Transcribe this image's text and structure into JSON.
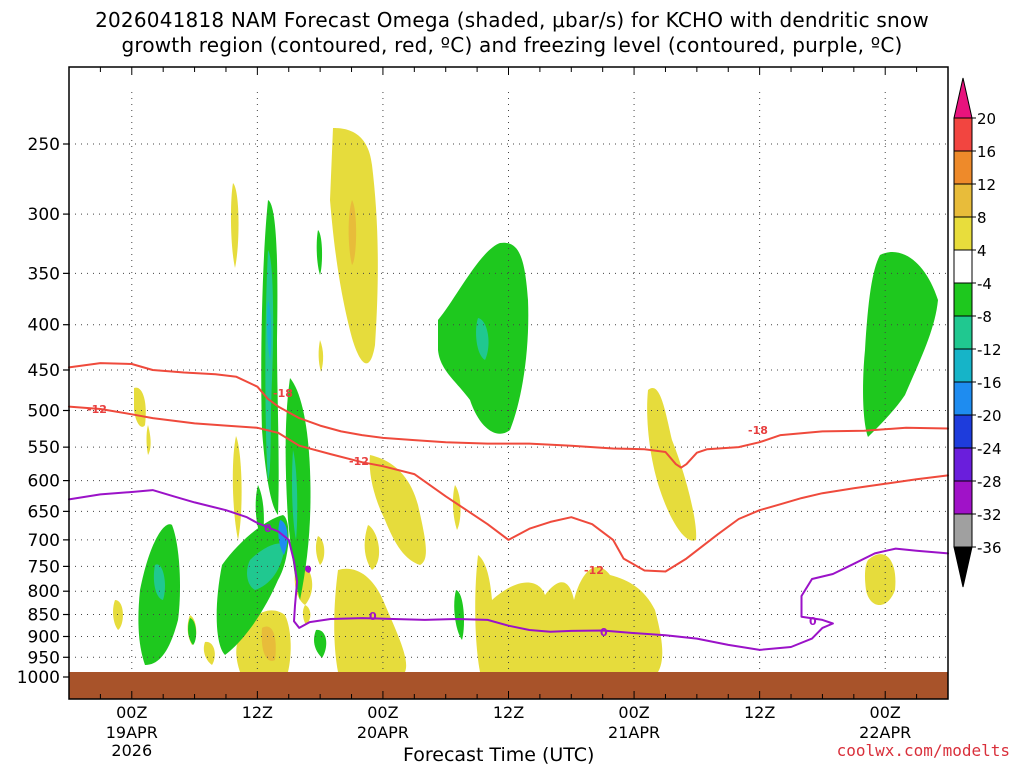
{
  "title": {
    "line1": "2026041818 NAM Forecast Omega (shaded, μbar/s) for KCHO with dendritic snow",
    "line2": "growth region (contoured, red, ºC) and freezing level (contoured, purple, ºC)"
  },
  "credit": "coolwx.com/modelts",
  "chart_data": {
    "type": "time-height cross-section",
    "title": "2026041818 NAM Forecast Omega (shaded, μbar/s) for KCHO with dendritic snow growth region (contoured, red, ºC) and freezing level (contoured, purple, ºC)",
    "xlabel": "Forecast Time (UTC)",
    "ylabel": "",
    "y_axis": {
      "ticks": [
        250,
        300,
        350,
        400,
        450,
        500,
        550,
        600,
        650,
        700,
        750,
        800,
        850,
        900,
        950,
        1000
      ],
      "scale": "log pressure (hPa), inverted"
    },
    "x_axis": {
      "ticks": [
        {
          "label": "00Z",
          "sub1": "19APR",
          "sub2": "2026",
          "hour": 6
        },
        {
          "label": "12Z",
          "sub1": "",
          "sub2": "",
          "hour": 18
        },
        {
          "label": "00Z",
          "sub1": "20APR",
          "sub2": "",
          "hour": 30
        },
        {
          "label": "12Z",
          "sub1": "",
          "sub2": "",
          "hour": 42
        },
        {
          "label": "00Z",
          "sub1": "21APR",
          "sub2": "",
          "hour": 54
        },
        {
          "label": "12Z",
          "sub1": "",
          "sub2": "",
          "hour": 66
        },
        {
          "label": "00Z",
          "sub1": "22APR",
          "sub2": "",
          "hour": 78
        }
      ],
      "range_hours": [
        0,
        84
      ]
    },
    "colorbar": {
      "labels": [
        "20",
        "16",
        "12",
        "8",
        "4",
        "-4",
        "-8",
        "-12",
        "-16",
        "-20",
        "-24",
        "-28",
        "-32",
        "-36"
      ],
      "colors": [
        "#e8137d",
        "#f24540",
        "#ee8a2a",
        "#e8bc3a",
        "#e8dd3c",
        "#ffffff",
        "#1ec81e",
        "#20c890",
        "#16b4c8",
        "#1e8cf0",
        "#1e3cdc",
        "#6a1edc",
        "#a012c8",
        "#a0a0a0",
        "#000000"
      ]
    },
    "contours": {
      "dendritic_red": [
        {
          "label": "-12",
          "points": [
            [
              0,
              495
            ],
            [
              3,
              498
            ],
            [
              6,
              505
            ],
            [
              8,
              510
            ],
            [
              12,
              517
            ],
            [
              15,
              520
            ],
            [
              18,
              523
            ],
            [
              20,
              530
            ],
            [
              22,
              548
            ],
            [
              25,
              560
            ],
            [
              28,
              572
            ],
            [
              30,
              578
            ],
            [
              33,
              590
            ],
            [
              36,
              625
            ],
            [
              40,
              672
            ],
            [
              42,
              700
            ],
            [
              44,
              680
            ],
            [
              46,
              668
            ],
            [
              48,
              660
            ],
            [
              50,
              672
            ],
            [
              52,
              700
            ],
            [
              53,
              735
            ],
            [
              55,
              758
            ],
            [
              57,
              760
            ],
            [
              59,
              735
            ],
            [
              62,
              690
            ],
            [
              64,
              663
            ],
            [
              66,
              648
            ],
            [
              68,
              638
            ],
            [
              70,
              628
            ],
            [
              72,
              620
            ],
            [
              75,
              612
            ],
            [
              78,
              605
            ],
            [
              81,
              598
            ],
            [
              84,
              592
            ]
          ]
        },
        {
          "label": "-18",
          "points": [
            [
              0,
              447
            ],
            [
              3,
              442
            ],
            [
              6,
              443
            ],
            [
              8,
              450
            ],
            [
              11,
              453
            ],
            [
              14,
              455
            ],
            [
              16,
              458
            ],
            [
              18,
              470
            ],
            [
              19,
              485
            ],
            [
              20,
              495
            ],
            [
              22,
              510
            ],
            [
              24,
              520
            ],
            [
              26,
              528
            ],
            [
              28,
              533
            ],
            [
              30,
              537
            ],
            [
              33,
              540
            ],
            [
              36,
              543
            ],
            [
              40,
              545
            ],
            [
              44,
              545
            ],
            [
              48,
              548
            ],
            [
              52,
              552
            ],
            [
              55,
              553
            ],
            [
              57,
              557
            ],
            [
              58,
              575
            ],
            [
              58.5,
              580
            ],
            [
              59,
              575
            ],
            [
              60,
              558
            ],
            [
              61,
              553
            ],
            [
              64,
              550
            ],
            [
              66,
              543
            ],
            [
              68,
              533
            ],
            [
              72,
              528
            ],
            [
              76,
              527
            ],
            [
              80,
              523
            ],
            [
              84,
              524
            ]
          ]
        }
      ],
      "freezing_purple": [
        {
          "label": "0",
          "points": [
            [
              0,
              630
            ],
            [
              3,
              622
            ],
            [
              6,
              618
            ],
            [
              8,
              615
            ],
            [
              10,
              625
            ],
            [
              12,
              635
            ],
            [
              15,
              648
            ],
            [
              17,
              660
            ],
            [
              18,
              670
            ],
            [
              20,
              685
            ],
            [
              21,
              700
            ],
            [
              21.5,
              740
            ],
            [
              21.8,
              780
            ],
            [
              21.6,
              830
            ],
            [
              21.5,
              865
            ],
            [
              22,
              880
            ],
            [
              23,
              867
            ],
            [
              25,
              860
            ],
            [
              28,
              858
            ],
            [
              31,
              860
            ],
            [
              34,
              862
            ],
            [
              37,
              860
            ],
            [
              40,
              862
            ],
            [
              42,
              875
            ],
            [
              44,
              885
            ],
            [
              46,
              889
            ],
            [
              48,
              887
            ],
            [
              51,
              886
            ],
            [
              54,
              892
            ],
            [
              57,
              897
            ],
            [
              60,
              905
            ],
            [
              63,
              920
            ],
            [
              66,
              932
            ],
            [
              69,
              925
            ],
            [
              71,
              905
            ],
            [
              72,
              880
            ],
            [
              73,
              870
            ],
            [
              72,
              862
            ],
            [
              70,
              855
            ],
            [
              70,
              810
            ],
            [
              71,
              775
            ],
            [
              73,
              765
            ],
            [
              75,
              745
            ],
            [
              77,
              725
            ],
            [
              79,
              716
            ],
            [
              81,
              720
            ],
            [
              84,
              725
            ]
          ]
        }
      ]
    }
  },
  "labels": {
    "xaxis_title": "Forecast Time (UTC)",
    "contour_m12a": "-12",
    "contour_m18a": "-18",
    "contour_m12b": "-12",
    "contour_m18b": "-18",
    "contour_m12c": "-12",
    "contour_0a": "0",
    "contour_0b": "0",
    "contour_0c": "0",
    "contour_0d": "0"
  }
}
